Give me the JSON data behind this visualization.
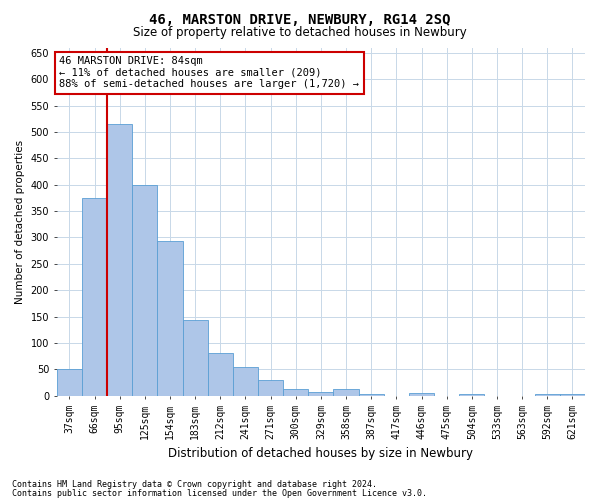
{
  "title": "46, MARSTON DRIVE, NEWBURY, RG14 2SQ",
  "subtitle": "Size of property relative to detached houses in Newbury",
  "xlabel": "Distribution of detached houses by size in Newbury",
  "ylabel": "Number of detached properties",
  "categories": [
    "37sqm",
    "66sqm",
    "95sqm",
    "125sqm",
    "154sqm",
    "183sqm",
    "212sqm",
    "241sqm",
    "271sqm",
    "300sqm",
    "329sqm",
    "358sqm",
    "387sqm",
    "417sqm",
    "446sqm",
    "475sqm",
    "504sqm",
    "533sqm",
    "563sqm",
    "592sqm",
    "621sqm"
  ],
  "values": [
    50,
    375,
    515,
    400,
    293,
    143,
    81,
    55,
    30,
    12,
    8,
    12,
    3,
    0,
    5,
    0,
    3,
    0,
    0,
    3,
    3
  ],
  "bar_color": "#aec6e8",
  "bar_edge_color": "#5a9fd4",
  "grid_color": "#c8d8e8",
  "annotation_line1": "46 MARSTON DRIVE: 84sqm",
  "annotation_line2": "← 11% of detached houses are smaller (209)",
  "annotation_line3": "88% of semi-detached houses are larger (1,720) →",
  "annotation_box_color": "#ffffff",
  "annotation_box_edge_color": "#cc0000",
  "vline_x_index": 1.5,
  "vline_color": "#cc0000",
  "ylim": [
    0,
    660
  ],
  "yticks": [
    0,
    50,
    100,
    150,
    200,
    250,
    300,
    350,
    400,
    450,
    500,
    550,
    600,
    650
  ],
  "footer_line1": "Contains HM Land Registry data © Crown copyright and database right 2024.",
  "footer_line2": "Contains public sector information licensed under the Open Government Licence v3.0.",
  "background_color": "#ffffff",
  "title_fontsize": 10,
  "subtitle_fontsize": 8.5,
  "ylabel_fontsize": 7.5,
  "xlabel_fontsize": 8.5,
  "tick_fontsize": 7,
  "annot_fontsize": 7.5,
  "footer_fontsize": 6
}
